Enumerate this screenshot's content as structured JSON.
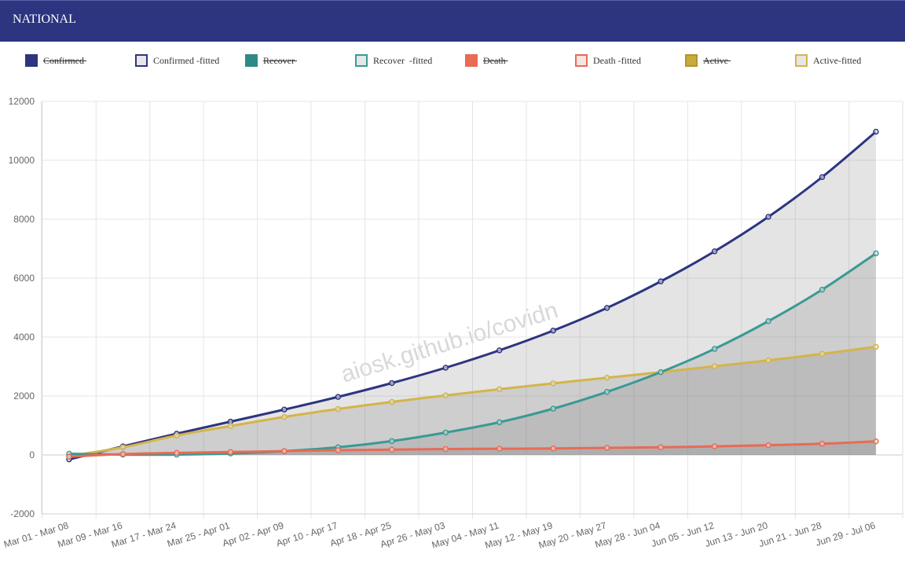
{
  "header": {
    "title": "NATIONAL"
  },
  "legend": [
    {
      "label": "Confirmed ",
      "hidden": true,
      "fill": "#2d3580",
      "border": "#2d3580"
    },
    {
      "label": "Confirmed -fitted",
      "hidden": false,
      "fill": "#e6e6e6",
      "border": "#2d3580"
    },
    {
      "label": "Recover ",
      "hidden": true,
      "fill": "#2e8a85",
      "border": "#2e8a85"
    },
    {
      "label": "Recover  -fitted",
      "hidden": false,
      "fill": "#e6e6e6",
      "border": "#3a9a93"
    },
    {
      "label": "Death ",
      "hidden": true,
      "fill": "#e96a55",
      "border": "#e96a55"
    },
    {
      "label": "Death -fitted",
      "hidden": false,
      "fill": "#f4e6e3",
      "border": "#e96a55"
    },
    {
      "label": "Active ",
      "hidden": true,
      "fill": "#c9aa3c",
      "border": "#b29532"
    },
    {
      "label": "Active-fitted",
      "hidden": false,
      "fill": "#e6e6e6",
      "border": "#d4b44a"
    }
  ],
  "watermark": "aiosk.github.io/covidn",
  "chart_data": {
    "type": "line",
    "categories": [
      "Mar 01 - Mar 08",
      "Mar 09 - Mar 16",
      "Mar 17 - Mar 24",
      "Mar 25 - Apr 01",
      "Apr 02 - Apr 09",
      "Apr 10 - Apr 17",
      "Apr 18 - Apr 25",
      "Apr 26 - May 03",
      "May 04 - May 11",
      "May 12 - May 19",
      "May 20 - May 27",
      "May 28 - Jun 04",
      "Jun 05 - Jun 12",
      "Jun 13 - Jun 20",
      "Jun 21 - Jun 28",
      "Jun 29 - Jul 06"
    ],
    "ylim": [
      -2000,
      12000
    ],
    "yticks": [
      -2000,
      0,
      2000,
      4000,
      6000,
      8000,
      10000,
      12000
    ],
    "grid": true,
    "legend_position": "top",
    "series": [
      {
        "name": "Confirmed -fitted",
        "color": "#2d3580",
        "fill": "rgba(120,120,120,0.2)",
        "values": [
          -150,
          290,
          720,
          1130,
          1540,
          1970,
          2440,
          2960,
          3550,
          4220,
          4990,
          5890,
          6910,
          8080,
          9430,
          10970
        ]
      },
      {
        "name": "Active-fitted",
        "color": "#d4b44a",
        "fill": "rgba(120,120,120,0.2)",
        "values": [
          -40,
          260,
          660,
          980,
          1290,
          1560,
          1800,
          2020,
          2230,
          2430,
          2620,
          2810,
          3010,
          3210,
          3430,
          3670
        ]
      },
      {
        "name": "Recover  -fitted",
        "color": "#3a9a93",
        "fill": "rgba(120,120,120,0.2)",
        "values": [
          40,
          10,
          10,
          50,
          130,
          260,
          470,
          760,
          1110,
          1570,
          2140,
          2810,
          3600,
          4540,
          5610,
          6840
        ]
      },
      {
        "name": "Death -fitted",
        "color": "#e96a55",
        "fill": "rgba(120,120,120,0.2)",
        "values": [
          -60,
          30,
          70,
          100,
          130,
          160,
          180,
          200,
          210,
          220,
          240,
          260,
          290,
          330,
          380,
          460
        ]
      }
    ]
  }
}
